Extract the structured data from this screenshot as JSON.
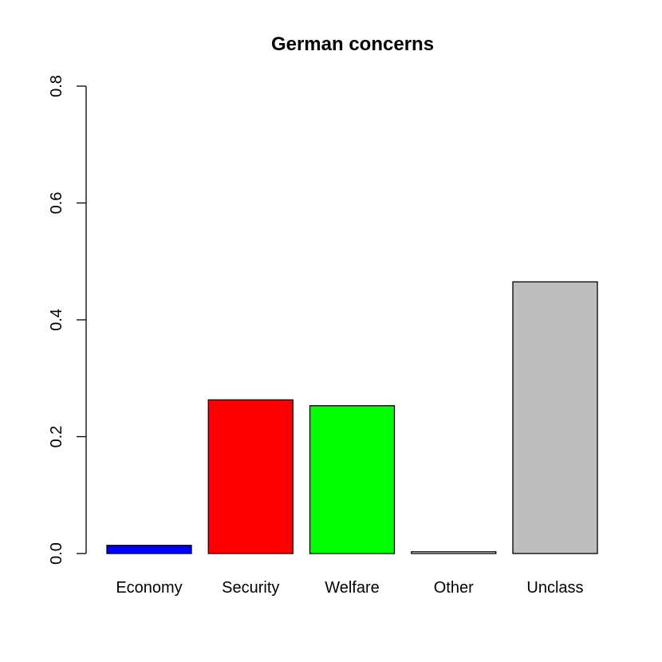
{
  "chart_data": {
    "type": "bar",
    "title": "German concerns",
    "xlabel": "",
    "ylabel": "",
    "ylim": [
      0,
      0.8
    ],
    "yticks": [
      0,
      0.2,
      0.4,
      0.6,
      0.8
    ],
    "ytick_labels": [
      "0.0",
      "0.2",
      "0.4",
      "0.6",
      "0.8"
    ],
    "categories": [
      "Economy",
      "Security",
      "Welfare",
      "Other",
      "Unclass"
    ],
    "values": [
      0.014,
      0.263,
      0.253,
      0.003,
      0.465
    ],
    "colors": [
      "#0000ff",
      "#ff0000",
      "#00ff00",
      "#ffffff",
      "#bebebe"
    ],
    "grid": false,
    "legend": "none"
  }
}
